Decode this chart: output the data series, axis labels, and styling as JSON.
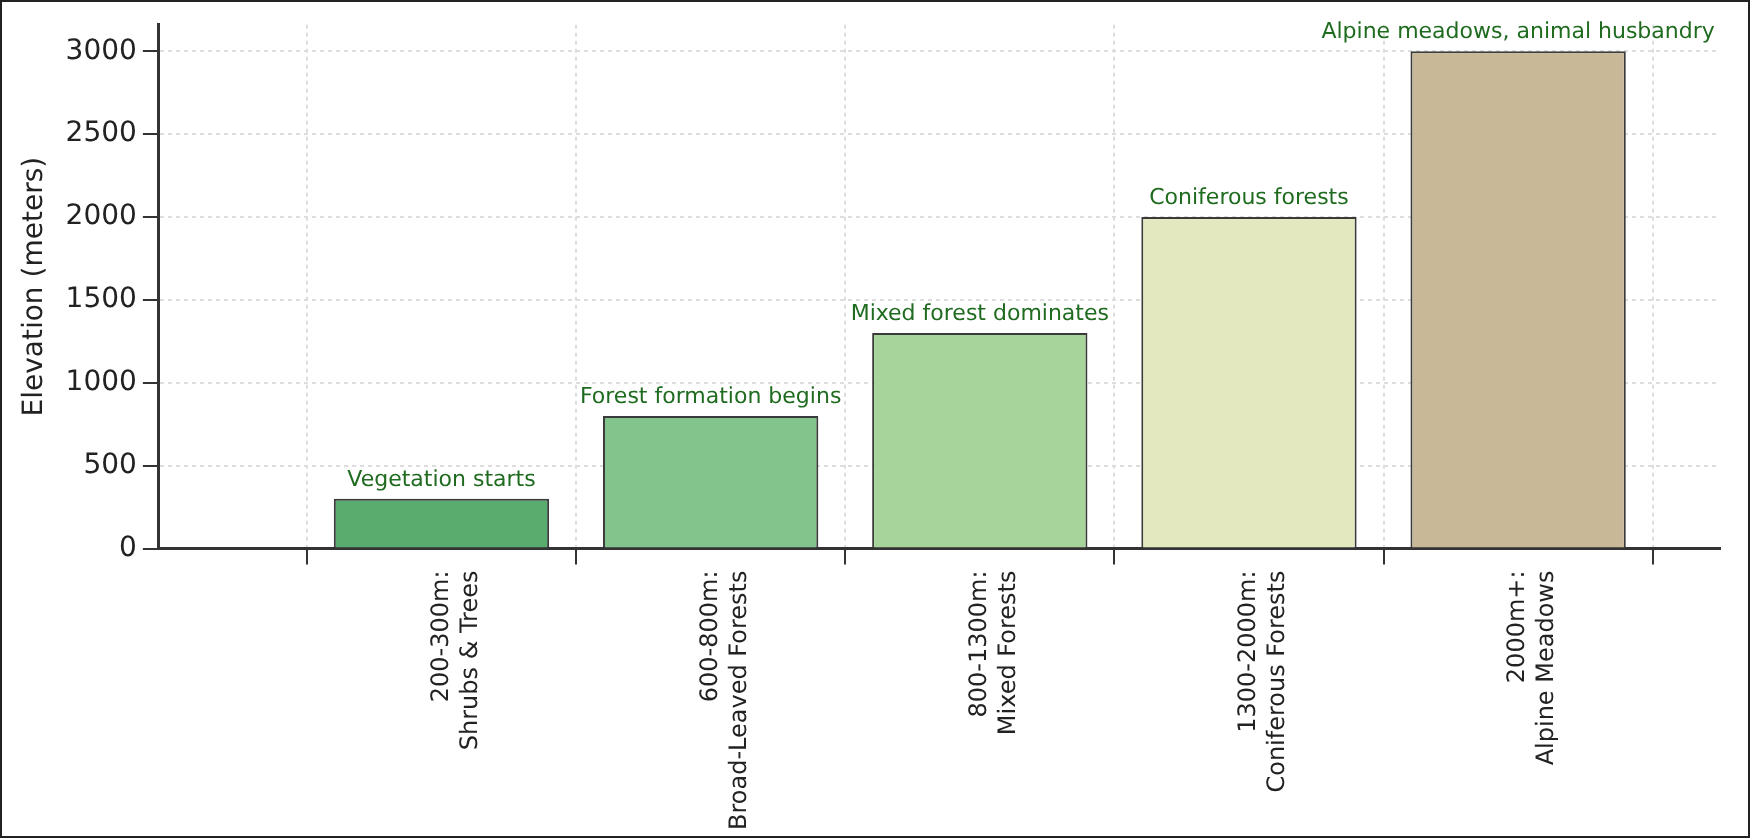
{
  "chart_data": {
    "type": "bar",
    "ylabel": "Elevation (meters)",
    "categories": [
      "200-300m:\nShrubs & Trees",
      "600-800m:\nBroad-Leaved Forests",
      "800-1300m:\nMixed Forests",
      "1300-2000m:\nConiferous Forests",
      "2000m+:\nAlpine Meadows"
    ],
    "values": [
      300,
      800,
      1300,
      2000,
      3000
    ],
    "colors": [
      "#5aab6e",
      "#82c48c",
      "#a6d49a",
      "#e4e8bf",
      "#c8b898"
    ],
    "ylim": [
      0,
      3160
    ],
    "yticks": [
      0,
      500,
      1000,
      1500,
      2000,
      2500,
      3000
    ],
    "grid": true,
    "legend": false,
    "annotations": [
      {
        "text": "Vegetation starts",
        "x": "200-300m:\nShrubs & Trees",
        "y": 300
      },
      {
        "text": "Forest formation begins",
        "x": "600-800m:\nBroad-Leaved Forests",
        "y": 800
      },
      {
        "text": "Mixed forest dominates",
        "x": "800-1300m:\nMixed Forests",
        "y": 1300
      },
      {
        "text": "Coniferous forests",
        "x": "1300-2000m:\nConiferous Forests",
        "y": 2000
      },
      {
        "text": "Alpine meadows, animal husbandry",
        "x": "2000m+:\nAlpine Meadows",
        "y": 3000
      }
    ]
  }
}
